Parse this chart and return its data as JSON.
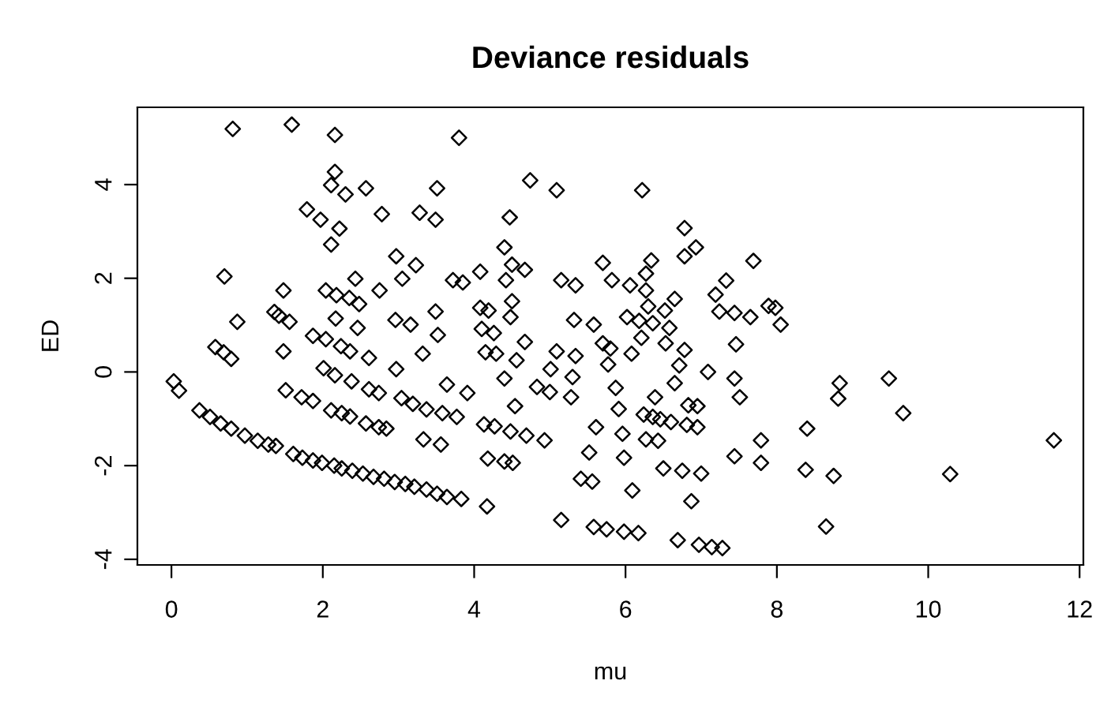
{
  "chart_data": {
    "type": "scatter",
    "title": "Deviance residuals",
    "xlabel": "mu",
    "ylabel": "ED",
    "xlim": [
      -0.45,
      12.05
    ],
    "ylim": [
      -4.12,
      5.65
    ],
    "xticks": [
      0,
      2,
      4,
      6,
      8,
      10,
      12
    ],
    "yticks": [
      -4,
      -2,
      0,
      2,
      4
    ],
    "grid": false,
    "marker": "diamond",
    "series": [
      {
        "color": "#000000",
        "x": [
          0.81,
          1.59,
          2.16,
          3.8,
          2.16,
          2.11,
          2.3,
          2.57,
          3.51,
          1.79,
          1.97,
          2.22,
          2.78,
          3.28,
          3.49,
          2.11,
          2.97,
          3.23,
          3.05,
          0.7,
          1.48,
          2.04,
          2.18,
          2.35,
          2.43,
          2.48,
          2.75,
          3.72,
          3.85,
          0.87,
          1.36,
          1.56,
          1.42,
          2.17,
          2.46,
          2.96,
          3.16,
          3.49,
          3.52,
          0.58,
          0.69,
          0.79,
          1.48,
          1.87,
          2.04,
          2.24,
          2.36,
          2.61,
          3.32,
          2.97,
          2.01,
          2.16,
          2.38,
          2.61,
          2.74,
          3.64,
          3.91,
          0.03,
          0.1,
          1.51,
          1.72,
          1.87,
          2.11,
          2.25,
          2.36,
          2.57,
          2.74,
          2.84,
          3.04,
          3.19,
          3.37,
          3.58,
          3.77,
          3.33,
          3.56,
          0.37,
          0.51,
          0.65,
          0.79,
          0.97,
          1.14,
          1.28,
          1.38,
          1.61,
          1.73,
          1.87,
          1.99,
          2.15,
          2.25,
          2.39,
          2.53,
          2.67,
          2.81,
          2.95,
          3.09,
          3.21,
          3.37,
          3.51,
          3.64,
          3.83,
          4.74,
          5.09,
          6.22,
          4.47,
          6.78,
          6.93,
          6.78,
          4.4,
          4.5,
          4.67,
          4.08,
          4.42,
          5.15,
          5.34,
          5.7,
          5.82,
          6.06,
          6.27,
          6.34,
          6.27,
          6.65,
          7.19,
          7.33,
          7.69,
          7.24,
          7.44,
          7.65,
          4.5,
          4.48,
          4.08,
          4.19,
          4.1,
          4.26,
          4.15,
          4.29,
          4.56,
          4.67,
          5.09,
          5.34,
          5.01,
          5.3,
          4.4,
          5.32,
          5.58,
          6.02,
          6.18,
          6.36,
          6.21,
          6.53,
          6.58,
          6.52,
          6.3,
          5.7,
          5.8,
          6.08,
          5.77,
          6.78,
          6.71,
          7.09,
          6.65,
          7.44,
          7.51,
          4.83,
          5.0,
          5.28,
          4.54,
          5.87,
          5.91,
          6.39,
          6.83,
          6.95,
          6.24,
          6.36,
          6.46,
          6.6,
          6.81,
          6.95,
          4.13,
          4.27,
          4.48,
          4.69,
          4.93,
          5.61,
          5.96,
          5.52,
          6.27,
          6.43,
          4.18,
          4.4,
          4.51,
          5.41,
          5.56,
          5.98,
          6.5,
          6.75,
          7.0,
          7.44,
          4.17,
          6.09,
          6.87,
          5.15,
          5.58,
          5.75,
          5.98,
          6.17,
          6.69,
          6.97,
          7.14,
          7.28,
          7.89,
          7.98,
          8.05,
          7.46,
          8.83,
          8.81,
          9.48,
          9.67,
          8.4,
          7.79,
          7.79,
          8.38,
          8.75,
          10.29,
          11.66,
          8.65
        ],
        "values": [
          5.19,
          5.28,
          5.06,
          5.0,
          4.27,
          3.99,
          3.79,
          3.92,
          3.92,
          3.47,
          3.25,
          3.06,
          3.37,
          3.4,
          3.25,
          2.72,
          2.47,
          2.28,
          1.99,
          2.04,
          1.74,
          1.74,
          1.64,
          1.58,
          1.99,
          1.45,
          1.74,
          1.96,
          1.91,
          1.07,
          1.28,
          1.07,
          1.2,
          1.14,
          0.94,
          1.11,
          1.01,
          1.29,
          0.79,
          0.53,
          0.42,
          0.28,
          0.44,
          0.77,
          0.7,
          0.55,
          0.44,
          0.3,
          0.39,
          0.06,
          0.08,
          -0.07,
          -0.2,
          -0.37,
          -0.45,
          -0.27,
          -0.45,
          -0.2,
          -0.4,
          -0.39,
          -0.54,
          -0.62,
          -0.82,
          -0.88,
          -0.95,
          -1.1,
          -1.18,
          -1.21,
          -0.56,
          -0.68,
          -0.8,
          -0.88,
          -0.96,
          -1.44,
          -1.55,
          -0.82,
          -0.96,
          -1.1,
          -1.21,
          -1.36,
          -1.47,
          -1.55,
          -1.58,
          -1.75,
          -1.83,
          -1.89,
          -1.94,
          -2.0,
          -2.06,
          -2.11,
          -2.17,
          -2.24,
          -2.28,
          -2.35,
          -2.39,
          -2.45,
          -2.51,
          -2.6,
          -2.67,
          -2.71,
          4.09,
          3.88,
          3.88,
          3.3,
          3.07,
          2.66,
          2.47,
          2.66,
          2.29,
          2.18,
          2.14,
          1.96,
          1.96,
          1.85,
          2.33,
          1.96,
          1.85,
          2.1,
          2.38,
          1.74,
          1.56,
          1.65,
          1.95,
          2.37,
          1.29,
          1.26,
          1.17,
          1.51,
          1.17,
          1.37,
          1.31,
          0.92,
          0.83,
          0.42,
          0.39,
          0.25,
          0.64,
          0.44,
          0.34,
          0.06,
          -0.11,
          -0.14,
          1.11,
          1.01,
          1.17,
          1.09,
          1.04,
          0.73,
          0.61,
          0.94,
          1.31,
          1.4,
          0.61,
          0.5,
          0.39,
          0.16,
          0.47,
          0.14,
          0.0,
          -0.24,
          -0.14,
          -0.54,
          -0.32,
          -0.43,
          -0.54,
          -0.73,
          -0.34,
          -0.79,
          -0.54,
          -0.71,
          -0.73,
          -0.91,
          -0.96,
          -1.01,
          -1.07,
          -1.13,
          -1.18,
          -1.12,
          -1.16,
          -1.27,
          -1.36,
          -1.46,
          -1.18,
          -1.32,
          -1.72,
          -1.44,
          -1.47,
          -1.85,
          -1.91,
          -1.94,
          -2.28,
          -2.34,
          -1.83,
          -2.06,
          -2.11,
          -2.17,
          -1.8,
          -2.87,
          -2.53,
          -2.76,
          -3.16,
          -3.31,
          -3.36,
          -3.41,
          -3.44,
          -3.59,
          -3.69,
          -3.74,
          -3.76,
          1.41,
          1.37,
          1.01,
          0.59,
          -0.24,
          -0.57,
          -0.14,
          -0.88,
          -1.21,
          -1.46,
          -1.94,
          -2.09,
          -2.22,
          -2.18,
          -1.46,
          -3.3
        ]
      }
    ]
  }
}
